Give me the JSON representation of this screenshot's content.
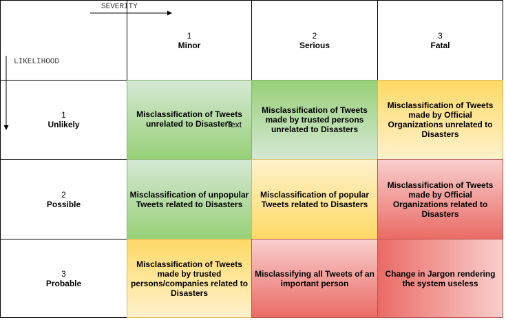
{
  "axes": {
    "severity_label": "SEVERITY",
    "likelihood_label": "LIKELIHOOD"
  },
  "severity": [
    {
      "num": "1",
      "label": "Minor"
    },
    {
      "num": "2",
      "label": "Serious"
    },
    {
      "num": "3",
      "label": "Fatal"
    }
  ],
  "likelihood": [
    {
      "num": "1",
      "label": "Unlikely"
    },
    {
      "num": "2",
      "label": "Possible"
    },
    {
      "num": "3",
      "label": "Probable"
    }
  ],
  "risks": {
    "r1c1": "Misclassification of Tweets unrelated to Disasters",
    "r1c1_overlay": "Text",
    "r1c2": "Misclassification of Tweets made by trusted persons unrelated to Disasters",
    "r1c3": "Misclassification of Tweets made by Official Organizations unrelated to Disasters",
    "r2c1": "Misclassification of unpopular Tweets related to Disasters",
    "r2c2": "Misclassification of popular Tweets related to Disasters",
    "r2c3": "Misclassification of Tweets made by Official Organizations related to Disasters",
    "r3c1": "Misclassification of Tweets made by trusted persons/companies related to Disasters",
    "r3c2": "Misclassifying all Tweets of an important person",
    "r3c3": "Change in Jargon rendering the system useless"
  },
  "colors": {
    "green": "#97d077",
    "light_green": "#d5e8d4",
    "yellow": "#ffd966",
    "light_yellow": "#fff2cc",
    "red": "#ea6b66",
    "light_red": "#f8cecc"
  }
}
